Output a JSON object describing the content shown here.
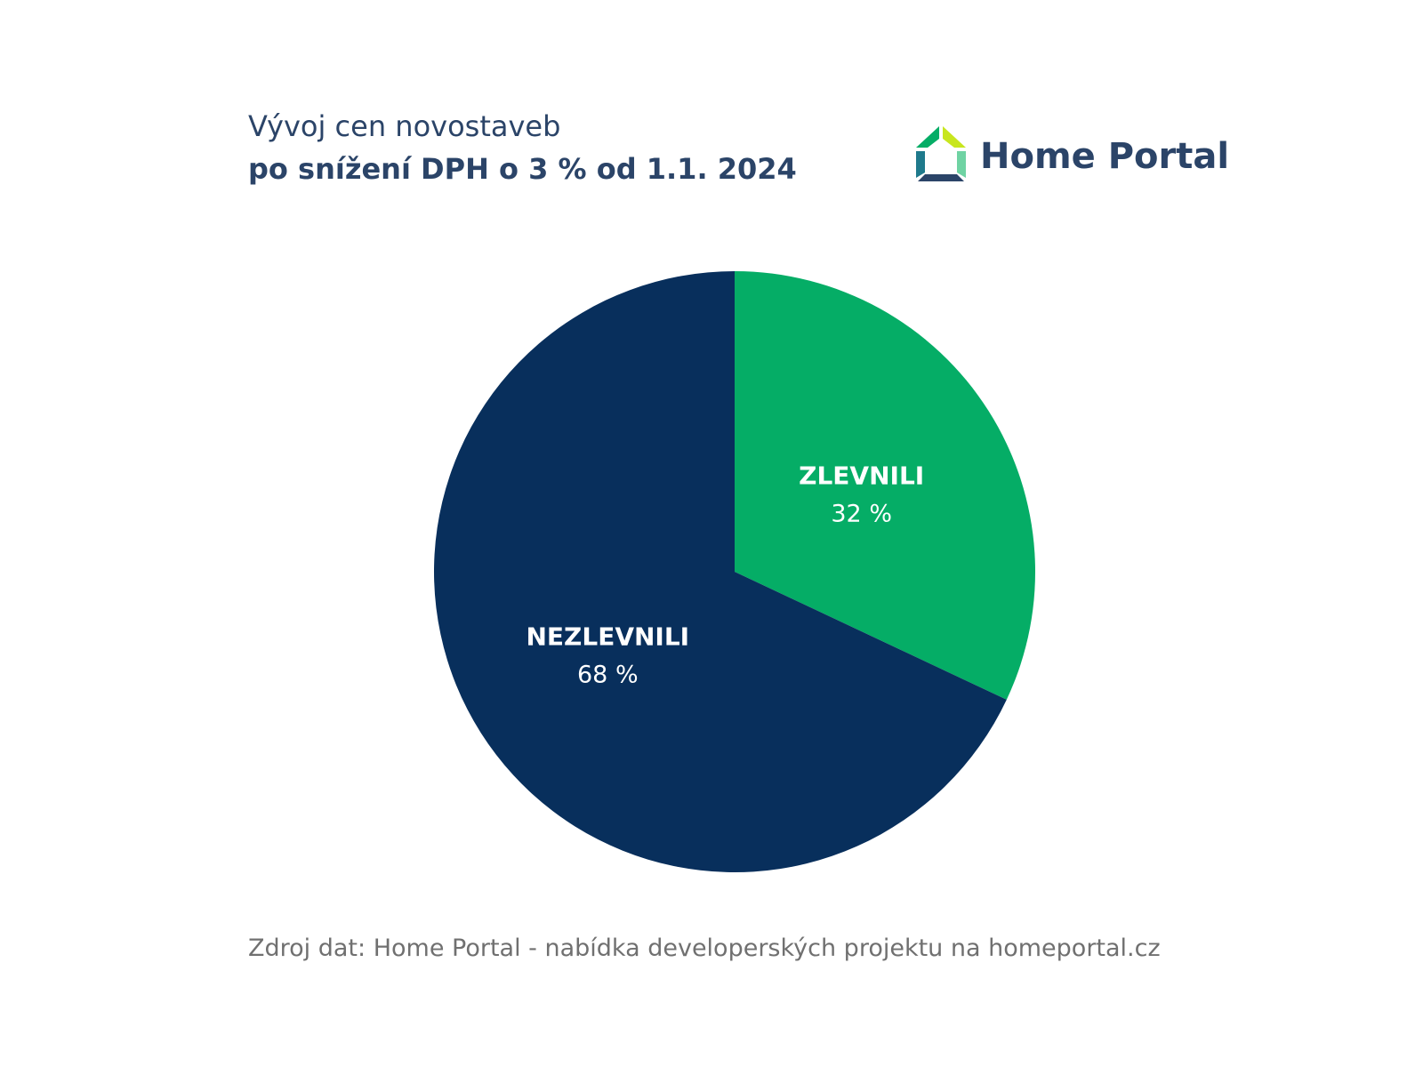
{
  "header": {
    "title": "Vývoj cen novostaveb",
    "subtitle": "po snížení DPH o 3 % od 1.1. 2024"
  },
  "logo": {
    "text": "Home Portal",
    "icon": "house-logo-icon"
  },
  "chart_data": {
    "type": "pie",
    "title": "Vývoj cen novostaveb",
    "subtitle": "po snížení DPH o 3 % od 1.1. 2024",
    "slices": [
      {
        "label": "ZLEVNILI",
        "value": 32,
        "display": "32 %",
        "color": "#05ad66"
      },
      {
        "label": "NEZLEVNILI",
        "value": 68,
        "display": "68 %",
        "color": "#082f5c"
      }
    ],
    "start_angle_deg": 0,
    "direction": "clockwise",
    "legend": "none",
    "labels_inside": true
  },
  "footer": {
    "source": "Zdroj dat: Home Portal - nabídka developerských projektu na homeportal.cz"
  },
  "colors": {
    "text_primary": "#2b4468",
    "text_source": "#707070",
    "label_text": "#ffffff"
  }
}
